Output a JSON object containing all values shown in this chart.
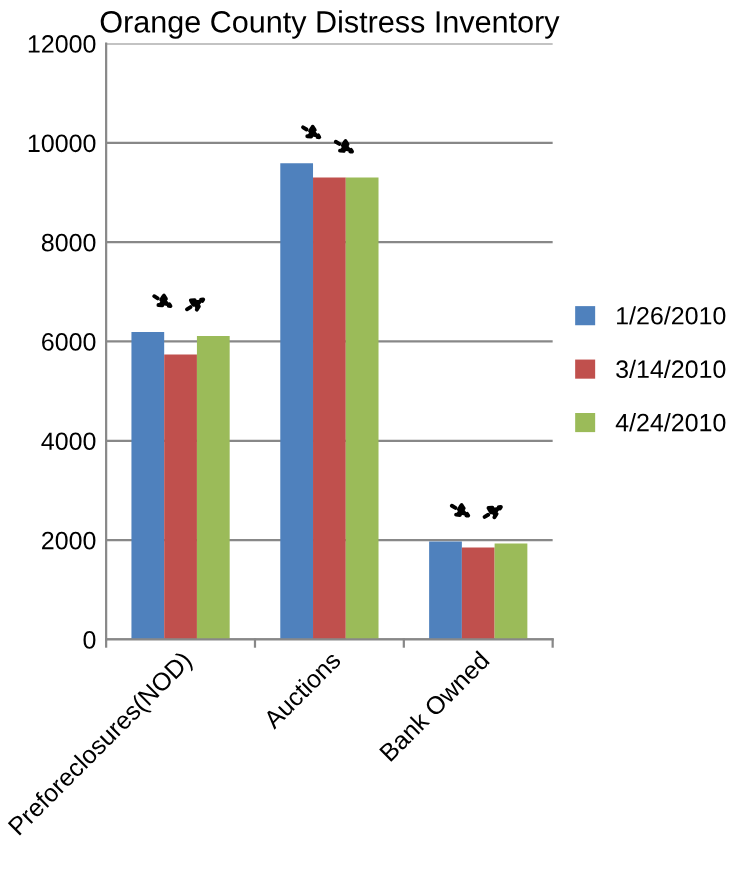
{
  "chart_data": {
    "type": "bar",
    "title": "Orange County Distress Inventory",
    "categories": [
      "Preforeclosures(NOD)",
      "Auctions",
      "Bank Owned"
    ],
    "series": [
      {
        "name": "1/26/2010",
        "color": "#4f81bd",
        "values": [
          6190,
          9590,
          1970
        ]
      },
      {
        "name": "3/14/2010",
        "color": "#c0504d",
        "values": [
          5740,
          9300,
          1850
        ]
      },
      {
        "name": "4/24/2010",
        "color": "#9bbb59",
        "values": [
          6110,
          9300,
          1930
        ]
      }
    ],
    "ylim": [
      0,
      12000
    ],
    "yticks": [
      0,
      2000,
      4000,
      6000,
      8000,
      10000,
      12000
    ],
    "grid": "y",
    "legend": "right"
  }
}
